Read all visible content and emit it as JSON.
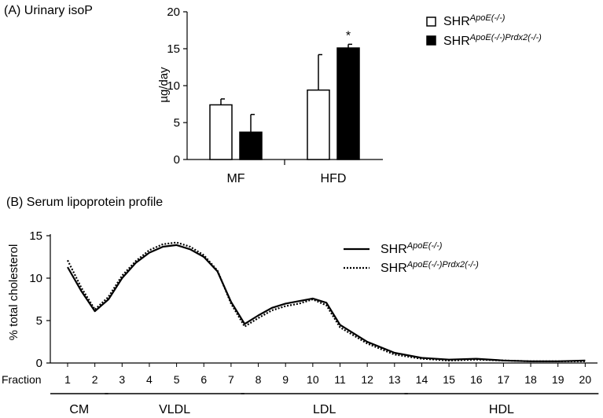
{
  "chart_data": [
    {
      "type": "bar",
      "panel_label": "(A) Urinary isoP",
      "ylabel": "µg/day",
      "ylim": [
        0,
        20
      ],
      "yticks": [
        0,
        5,
        10,
        15,
        20
      ],
      "categories": [
        "MF",
        "HFD"
      ],
      "series": [
        {
          "name": "SHR",
          "sup": "ApoE(-/-)",
          "fill": "#ffffff",
          "values": [
            7.4,
            9.4
          ],
          "errors": [
            0.8,
            4.8
          ]
        },
        {
          "name": "SHR",
          "sup": "ApoE(-/-)Prdx2(-/-)",
          "fill": "#000000",
          "values": [
            3.7,
            15.1
          ],
          "errors": [
            2.4,
            0.5
          ]
        }
      ],
      "annotations": [
        {
          "text": "*",
          "category": "HFD",
          "series": 1
        }
      ],
      "legend_position": "top-right"
    },
    {
      "type": "line",
      "panel_label": "(B) Serum lipoprotein profile",
      "ylabel": "% total cholesterol",
      "xlabel": "Fraction",
      "ylim": [
        0,
        15
      ],
      "yticks": [
        0,
        5,
        10,
        15
      ],
      "x": [
        1,
        1.5,
        2,
        2.5,
        3,
        3.5,
        4,
        4.5,
        5,
        5.5,
        6,
        6.5,
        7,
        7.5,
        8,
        8.5,
        9,
        9.5,
        10,
        10.5,
        11,
        12,
        13,
        14,
        15,
        16,
        17,
        18,
        19,
        20
      ],
      "x_tick_labels": [
        "1",
        "2",
        "3",
        "4",
        "5",
        "6",
        "7",
        "8",
        "9",
        "10",
        "11",
        "12",
        "13",
        "14",
        "15",
        "16",
        "17",
        "18",
        "19",
        "20"
      ],
      "series": [
        {
          "name": "SHR",
          "sup": "ApoE(-/-)",
          "style": "solid",
          "values": [
            11.3,
            8.5,
            6.1,
            7.5,
            10.0,
            11.8,
            13.0,
            13.7,
            13.9,
            13.4,
            12.5,
            10.8,
            7.2,
            4.6,
            5.6,
            6.5,
            7.0,
            7.3,
            7.6,
            7.1,
            4.5,
            2.5,
            1.2,
            0.6,
            0.4,
            0.5,
            0.3,
            0.2,
            0.2,
            0.3
          ]
        },
        {
          "name": "SHR",
          "sup": "ApoE(-/-)Prdx2(-/-)",
          "style": "dotted",
          "values": [
            12.1,
            8.9,
            6.3,
            7.8,
            10.3,
            12.0,
            13.3,
            14.0,
            14.2,
            13.7,
            12.7,
            10.9,
            7.0,
            4.3,
            5.3,
            6.2,
            6.7,
            7.0,
            7.5,
            6.8,
            4.2,
            2.3,
            1.0,
            0.5,
            0.3,
            0.4,
            0.3,
            0.2,
            0.2,
            0.2
          ]
        }
      ],
      "fraction_groups": [
        {
          "label": "CM",
          "from": 1,
          "to": 2
        },
        {
          "label": "VLDL",
          "from": 3,
          "to": 7
        },
        {
          "label": "LDL",
          "from": 8,
          "to": 13
        },
        {
          "label": "HDL",
          "from": 14,
          "to": 20
        }
      ],
      "legend_position": "top-right"
    }
  ]
}
